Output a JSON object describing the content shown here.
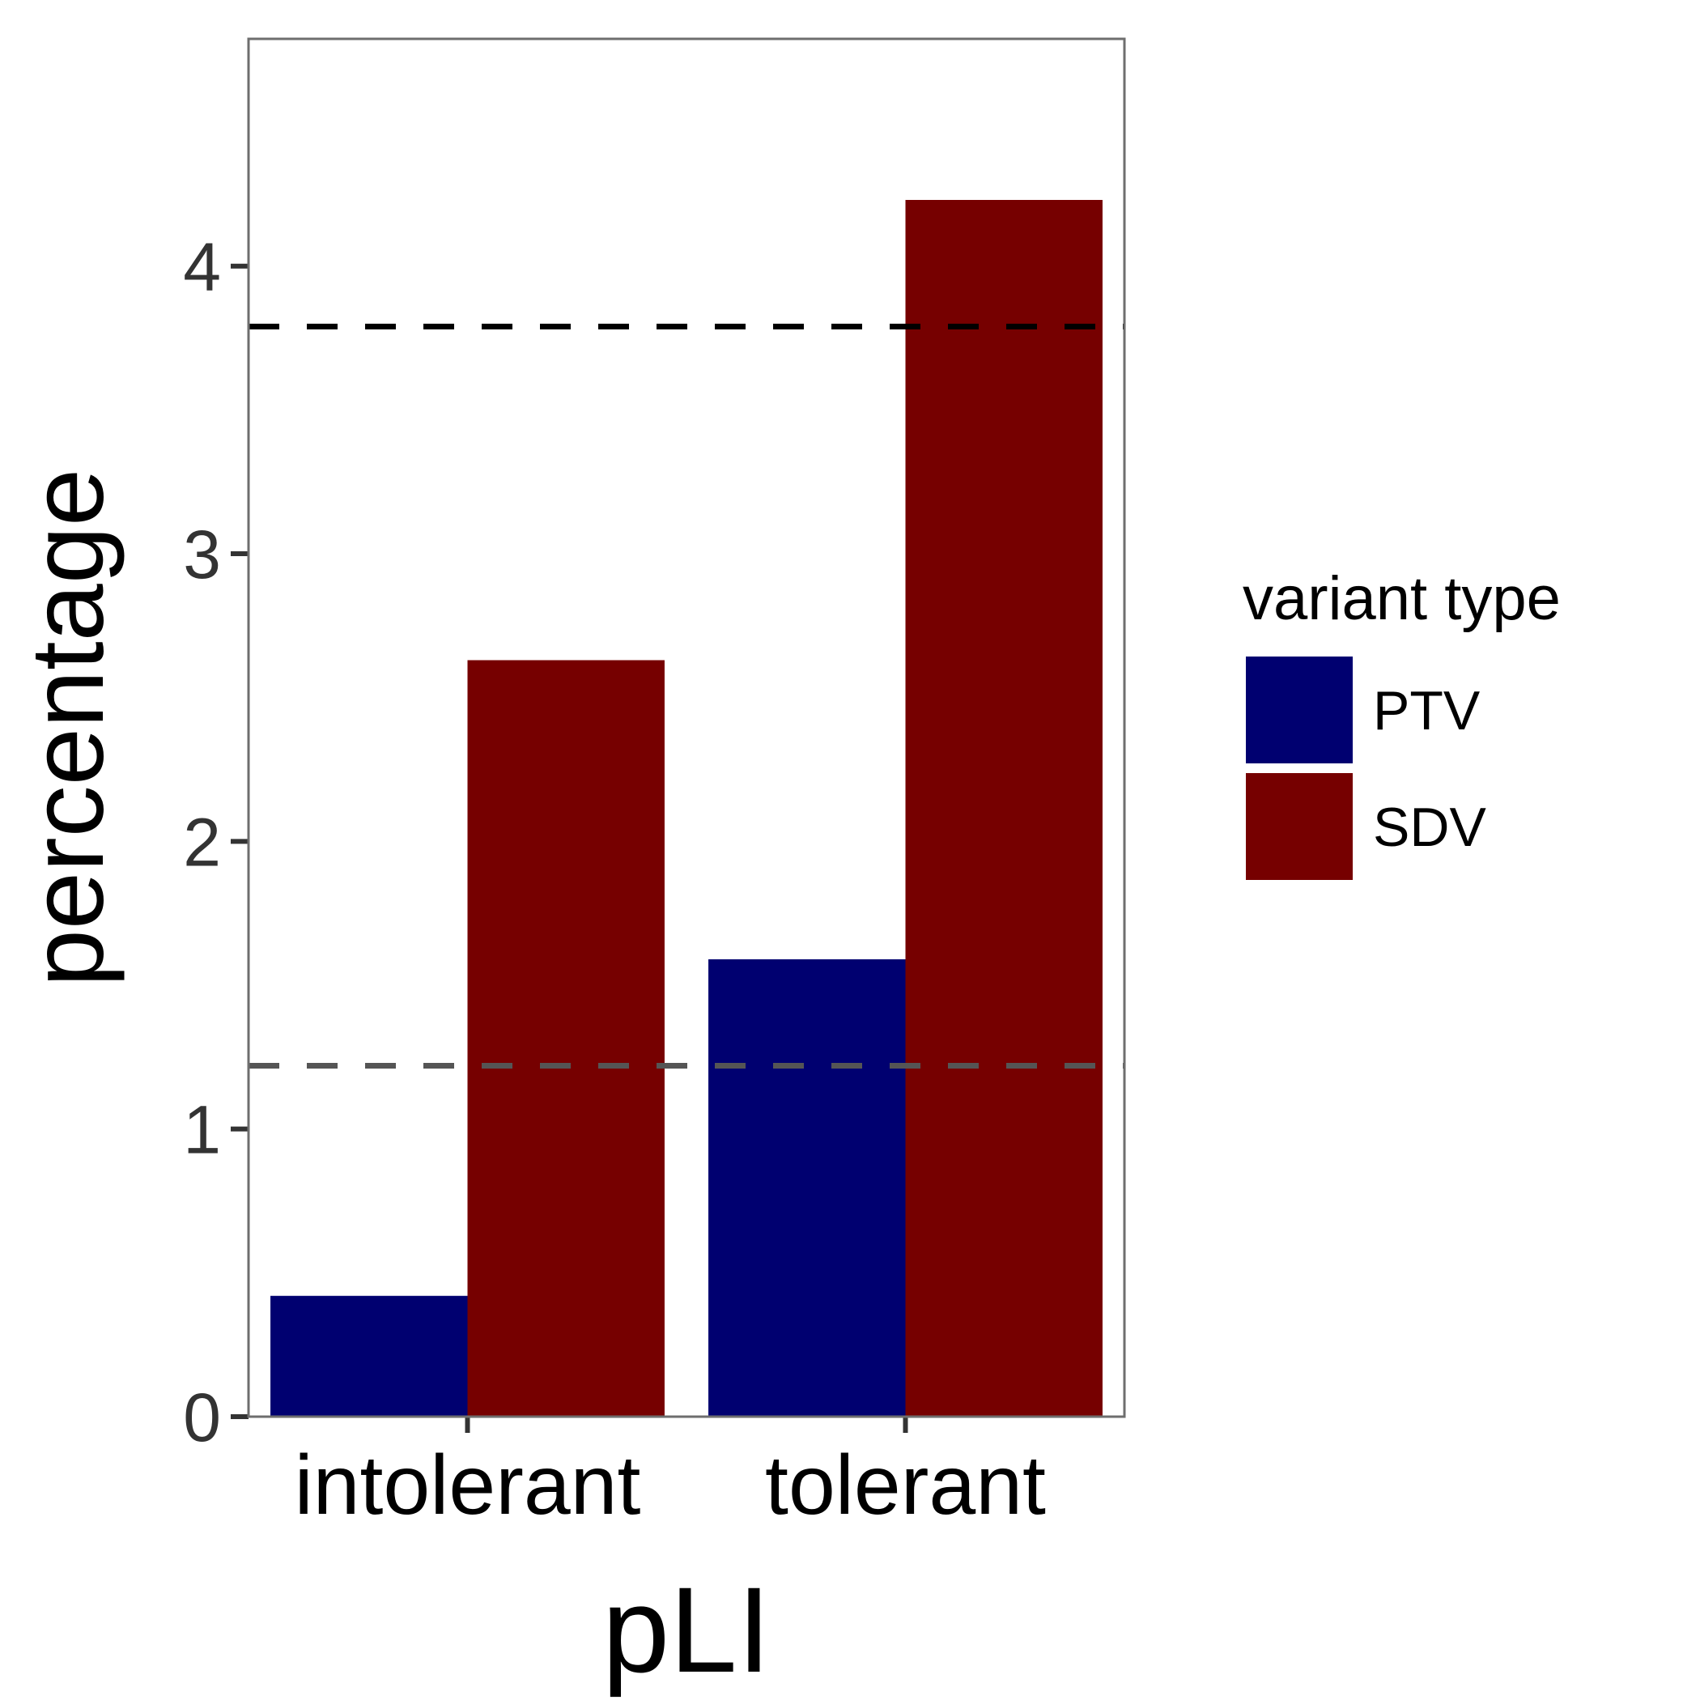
{
  "chart_data": {
    "type": "bar",
    "categories": [
      "intolerant",
      "tolerant"
    ],
    "series": [
      {
        "name": "PTV",
        "values": [
          0.42,
          1.59
        ],
        "color": "#000070"
      },
      {
        "name": "SDV",
        "values": [
          2.63,
          4.23
        ],
        "color": "#760000"
      }
    ],
    "reference_lines": [
      {
        "y": 3.79,
        "color": "#000000",
        "style": "dashed"
      },
      {
        "y": 1.22,
        "color": "#555555",
        "style": "dashed"
      }
    ],
    "xlabel": "pLI",
    "ylabel": "percentage",
    "ylim": [
      0,
      4.79
    ],
    "yticks": [
      0,
      1,
      2,
      3,
      4
    ],
    "ytick_labels": [
      "0",
      "1",
      "2",
      "3",
      "4"
    ],
    "grid": false,
    "legend": {
      "title": "variant type",
      "placement": "right"
    },
    "panel_border_color": "#6e6e6e"
  }
}
